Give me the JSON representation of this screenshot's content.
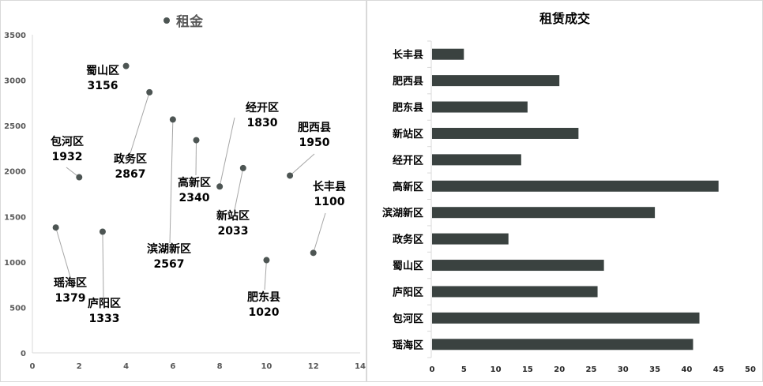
{
  "colors": {
    "marker": "#4d5553",
    "bar": "#3a4240",
    "axis": "#d9d9d9",
    "leader": "#a6a6a6"
  },
  "chart_data": [
    {
      "type": "scatter",
      "title": "租金",
      "legend": [
        "租金"
      ],
      "legend_position": "top",
      "xlabel": "",
      "ylabel": "",
      "xlim": [
        0,
        14
      ],
      "ylim": [
        0,
        3500
      ],
      "x_ticks": [
        "0",
        "2",
        "4",
        "6",
        "8",
        "10",
        "12",
        "14"
      ],
      "y_ticks": [
        "0",
        "500",
        "1000",
        "1500",
        "2000",
        "2500",
        "3000",
        "3500"
      ],
      "grid": false,
      "points": [
        {
          "x": 1,
          "y": 1379,
          "label": "瑶海区",
          "value_label": "1379"
        },
        {
          "x": 2,
          "y": 1932,
          "label": "包河区",
          "value_label": "1932"
        },
        {
          "x": 3,
          "y": 1333,
          "label": "庐阳区",
          "value_label": "1333"
        },
        {
          "x": 4,
          "y": 3156,
          "label": "蜀山区",
          "value_label": "3156"
        },
        {
          "x": 5,
          "y": 2867,
          "label": "政务区",
          "value_label": "2867"
        },
        {
          "x": 6,
          "y": 2567,
          "label": "滨湖新区",
          "value_label": "2567"
        },
        {
          "x": 7,
          "y": 2340,
          "label": "高新区",
          "value_label": "2340"
        },
        {
          "x": 8,
          "y": 1830,
          "label": "经开区",
          "value_label": "1830"
        },
        {
          "x": 9,
          "y": 2033,
          "label": "新站区",
          "value_label": "2033"
        },
        {
          "x": 10,
          "y": 1020,
          "label": "肥东县",
          "value_label": "1020"
        },
        {
          "x": 11,
          "y": 1950,
          "label": "肥西县",
          "value_label": "1950"
        },
        {
          "x": 12,
          "y": 1100,
          "label": "长丰县",
          "value_label": "1100"
        }
      ]
    },
    {
      "type": "bar",
      "orientation": "horizontal",
      "title": "租赁成交",
      "xlabel": "",
      "ylabel": "",
      "xlim": [
        0,
        50
      ],
      "x_ticks": [
        "0",
        "5",
        "10",
        "15",
        "20",
        "25",
        "30",
        "35",
        "40",
        "45",
        "50"
      ],
      "grid": false,
      "categories": [
        "长丰县",
        "肥西县",
        "肥东县",
        "新站区",
        "经开区",
        "高新区",
        "滨湖新区",
        "政务区",
        "蜀山区",
        "庐阳区",
        "包河区",
        "瑶海区"
      ],
      "values": [
        5,
        20,
        15,
        23,
        14,
        45,
        35,
        12,
        27,
        26,
        42,
        41
      ]
    }
  ]
}
